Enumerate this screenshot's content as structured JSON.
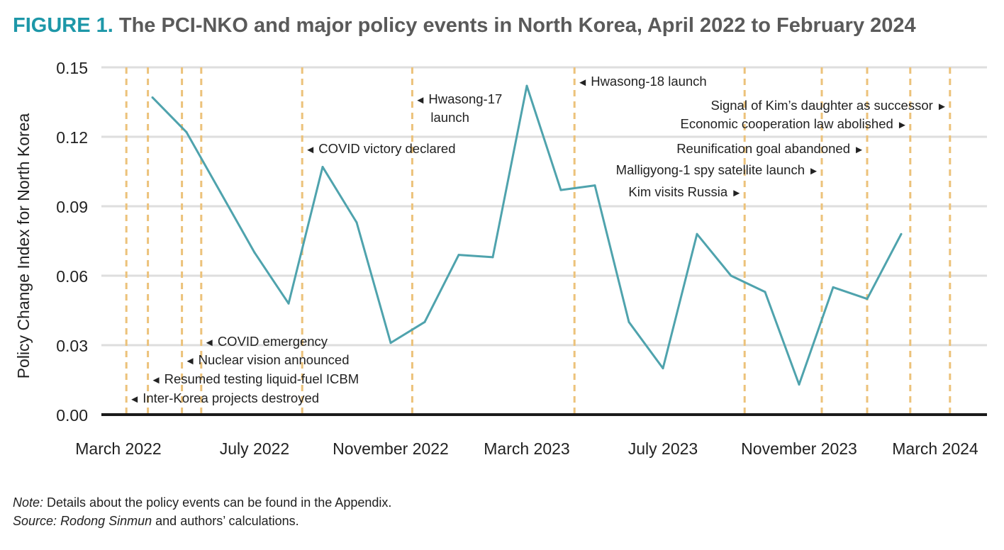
{
  "title": {
    "figure_label": "FIGURE 1.",
    "text": "The PCI-NKO and major policy events in North Korea, April 2022 to February 2024"
  },
  "notes": {
    "note_label": "Note:",
    "note_text": " Details about the policy events can be found in the Appendix.",
    "source_label": "Source:",
    "source_italic": "Rodong Sinmun",
    "source_text": " and authors’ calculations."
  },
  "colors": {
    "line": "#4fa3ad",
    "event_line": "#ecc27a",
    "grid": "#dedede",
    "axis": "#1a1a1a",
    "title_accent": "#1d97a8"
  },
  "chart_data": {
    "type": "line",
    "ylabel": "Policy Change Index for North Korea",
    "xlabel": "",
    "ylim": [
      0,
      0.15
    ],
    "yticks": [
      "0.00",
      "0.03",
      "0.06",
      "0.09",
      "0.12",
      "0.15"
    ],
    "xticks": [
      {
        "date": "2022-03",
        "label": "March 2022"
      },
      {
        "date": "2022-07",
        "label": "July 2022"
      },
      {
        "date": "2022-11",
        "label": "November 2022"
      },
      {
        "date": "2023-03",
        "label": "March 2023"
      },
      {
        "date": "2023-07",
        "label": "July 2023"
      },
      {
        "date": "2023-11",
        "label": "November 2023"
      },
      {
        "date": "2024-03",
        "label": "March 2024"
      }
    ],
    "grid": "horizontal",
    "x": [
      "2022-04",
      "2022-05",
      "2022-06",
      "2022-07",
      "2022-08",
      "2022-09",
      "2022-10",
      "2022-11",
      "2022-12",
      "2023-01",
      "2023-02",
      "2023-03",
      "2023-04",
      "2023-05",
      "2023-06",
      "2023-07",
      "2023-08",
      "2023-09",
      "2023-10",
      "2023-11",
      "2023-12",
      "2024-01",
      "2024-02"
    ],
    "values": [
      0.137,
      0.122,
      0.096,
      0.07,
      0.048,
      0.107,
      0.083,
      0.031,
      0.04,
      0.069,
      0.068,
      0.142,
      0.097,
      0.099,
      0.04,
      0.02,
      0.078,
      0.06,
      0.053,
      0.013,
      0.055,
      0.05,
      0.078
    ],
    "events": [
      {
        "date": "2022-03-08",
        "label": "Inter-Korea projects destroyed",
        "arrow": "left"
      },
      {
        "date": "2022-03-27",
        "label": "Resumed testing liquid-fuel ICBM",
        "arrow": "left"
      },
      {
        "date": "2022-04-27",
        "label": "Nuclear vision announced",
        "arrow": "left"
      },
      {
        "date": "2022-05-14",
        "label": "COVID emergency",
        "arrow": "left"
      },
      {
        "date": "2022-08-13",
        "label": "COVID victory declared",
        "arrow": "left"
      },
      {
        "date": "2022-11-20",
        "label": "Hwasong-17 launch",
        "arrow": "left"
      },
      {
        "date": "2023-04-13",
        "label": "Hwasong-18 launch",
        "arrow": "left"
      },
      {
        "date": "2023-09-13",
        "label": "Kim visits Russia",
        "arrow": "right"
      },
      {
        "date": "2023-11-21",
        "label": "Malligyong-1 spy satellite launch",
        "arrow": "right"
      },
      {
        "date": "2024-01-01",
        "label": "Reunification goal abandoned",
        "arrow": "right"
      },
      {
        "date": "2024-02-09",
        "label": "Economic cooperation law abolished",
        "arrow": "right"
      },
      {
        "date": "2024-03-14",
        "label": "Signal of Kim’s daughter as successor",
        "arrow": "right"
      }
    ]
  }
}
